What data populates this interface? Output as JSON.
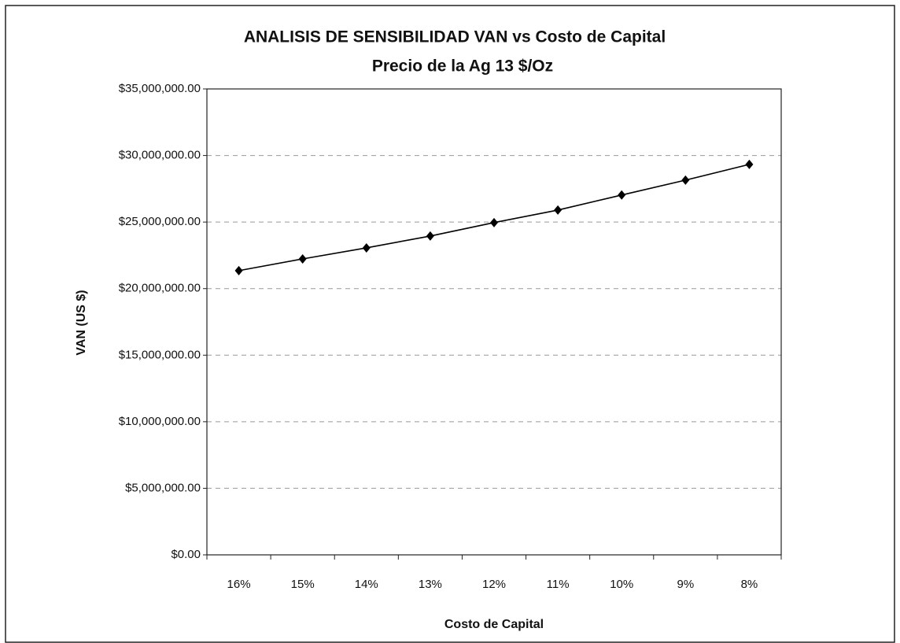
{
  "chart_data": {
    "type": "line",
    "title": "ANALISIS DE SENSIBILIDAD VAN  vs Costo de Capital",
    "subtitle": "Precio de la Ag  13 $/Oz",
    "x_label": "Costo de Capital",
    "y_label": "VAN (US $)",
    "categories": [
      "16%",
      "15%",
      "14%",
      "13%",
      "12%",
      "11%",
      "10%",
      "9%",
      "8%"
    ],
    "series": [
      {
        "name": "VAN",
        "color": "#000000",
        "values": [
          21350000,
          22230000,
          23060000,
          23950000,
          24960000,
          25900000,
          27030000,
          28150000,
          29330000
        ]
      }
    ],
    "ylim": [
      0,
      35000000
    ],
    "yticks": [
      {
        "value": 0,
        "label": "$0.00"
      },
      {
        "value": 5000000,
        "label": "$5,000,000.00"
      },
      {
        "value": 10000000,
        "label": "$10,000,000.00"
      },
      {
        "value": 15000000,
        "label": "$15,000,000.00"
      },
      {
        "value": 20000000,
        "label": "$20,000,000.00"
      },
      {
        "value": 25000000,
        "label": "$25,000,000.00"
      },
      {
        "value": 30000000,
        "label": "$30,000,000.00"
      },
      {
        "value": 35000000,
        "label": "$35,000,000.00"
      }
    ],
    "grid": true
  }
}
